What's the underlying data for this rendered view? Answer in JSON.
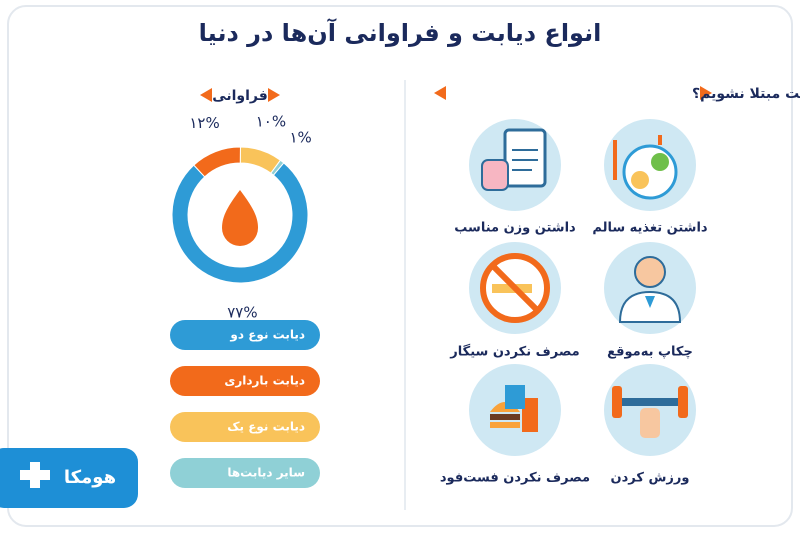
{
  "header": {
    "title": "انواع دیابت و فراوانی آن‌ها در دنیا"
  },
  "prevention": {
    "heading": "چه کارکنیم به دیابت مبتلا نشویم؟",
    "items": [
      {
        "label": "داشتن تغذیه سالم"
      },
      {
        "label": "داشتن وزن مناسب"
      },
      {
        "label": "چکاپ به‌موقع"
      },
      {
        "label": "مصرف نکردن سیگار"
      },
      {
        "label": "ورزش کردن"
      },
      {
        "label": "مصرف نکردن فست‌فود"
      }
    ]
  },
  "chart_data": {
    "type": "donut",
    "title": "فراوانی",
    "categories": [
      "دیابت نوع دو",
      "دیابت بارداری",
      "دیابت نوع یک",
      "سایر دیابت‌ها"
    ],
    "values": [
      77,
      12,
      10,
      1
    ],
    "value_labels": [
      "۷۷%",
      "۱۲%",
      "۱۰%",
      "۱%"
    ],
    "colors": [
      "#2e9bd6",
      "#f26a1b",
      "#f9c35a",
      "#8fd0d6"
    ]
  },
  "logo": {
    "text": "هومکا"
  }
}
